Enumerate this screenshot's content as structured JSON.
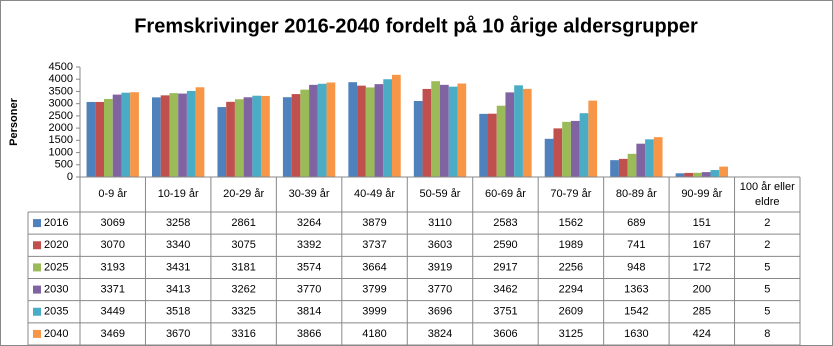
{
  "chart_data": {
    "type": "bar",
    "title": "Fremskrivinger 2016-2040 fordelt på 10 årige aldersgrupper",
    "y_label": "Personer",
    "categories": [
      "0-9 år",
      "10-19 år",
      "20-29 år",
      "30-39 år",
      "40-49 år",
      "50-59 år",
      "60-69 år",
      "70-79 år",
      "80-89 år",
      "90-99 år",
      "100 år eller eldre"
    ],
    "series": [
      {
        "name": "2016",
        "color": "#4f81bd",
        "values": [
          3069,
          3258,
          2861,
          3264,
          3879,
          3110,
          2583,
          1562,
          689,
          151,
          2
        ]
      },
      {
        "name": "2020",
        "color": "#c0504d",
        "values": [
          3070,
          3340,
          3075,
          3392,
          3737,
          3603,
          2590,
          1989,
          741,
          167,
          2
        ]
      },
      {
        "name": "2025",
        "color": "#9bbb59",
        "values": [
          3193,
          3431,
          3181,
          3574,
          3664,
          3919,
          2917,
          2256,
          948,
          172,
          5
        ]
      },
      {
        "name": "2030",
        "color": "#8064a2",
        "values": [
          3371,
          3413,
          3262,
          3770,
          3799,
          3770,
          3462,
          2294,
          1363,
          200,
          5
        ]
      },
      {
        "name": "2035",
        "color": "#4bacc6",
        "values": [
          3449,
          3518,
          3325,
          3814,
          3999,
          3696,
          3751,
          2609,
          1542,
          285,
          5
        ]
      },
      {
        "name": "2040",
        "color": "#f79646",
        "values": [
          3469,
          3670,
          3316,
          3866,
          4180,
          3824,
          3606,
          3125,
          1630,
          424,
          8
        ]
      }
    ],
    "ylim": [
      0,
      4500
    ],
    "yticks": [
      0,
      500,
      1000,
      1500,
      2000,
      2500,
      3000,
      3500,
      4000,
      4500
    ]
  }
}
